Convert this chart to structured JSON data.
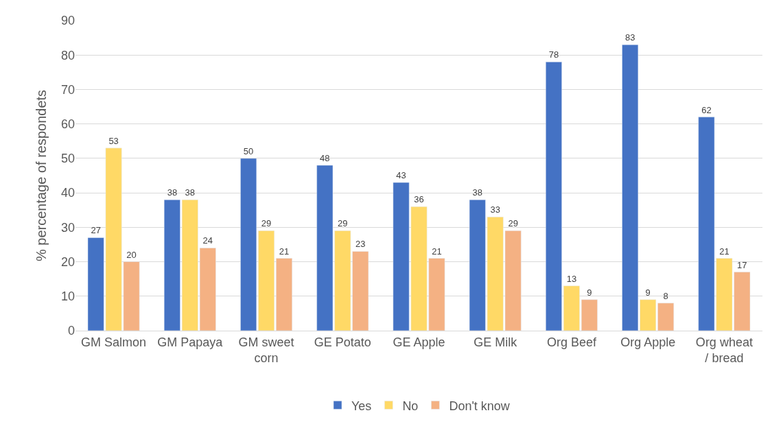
{
  "chart_data": {
    "type": "bar",
    "ylabel": "% percentage of respondets",
    "categories": [
      "GM Salmon",
      "GM Papaya",
      "GM sweet corn",
      "GE Potato",
      "GE Apple",
      "GE Milk",
      "Org Beef",
      "Org Apple",
      "Org wheat / bread"
    ],
    "series": [
      {
        "name": "Yes",
        "color": "#4472c4",
        "values": [
          27,
          38,
          50,
          48,
          43,
          38,
          78,
          83,
          62
        ]
      },
      {
        "name": "No",
        "color": "#ffd966",
        "values": [
          53,
          38,
          29,
          29,
          36,
          33,
          13,
          9,
          21
        ]
      },
      {
        "name": "Don't know",
        "color": "#f4b183",
        "values": [
          20,
          24,
          21,
          23,
          21,
          29,
          9,
          8,
          17
        ]
      }
    ],
    "ylim": [
      0,
      90
    ],
    "yticks": [
      0,
      10,
      20,
      30,
      40,
      50,
      60,
      70,
      80,
      90
    ],
    "grid": "y",
    "legend": "bottom",
    "data_labels": true
  }
}
